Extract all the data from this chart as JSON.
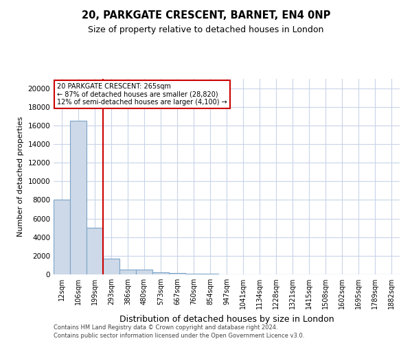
{
  "title_line1": "20, PARKGATE CRESCENT, BARNET, EN4 0NP",
  "title_line2": "Size of property relative to detached houses in London",
  "xlabel": "Distribution of detached houses by size in London",
  "ylabel": "Number of detached properties",
  "bar_categories": [
    "12sqm",
    "106sqm",
    "199sqm",
    "293sqm",
    "386sqm",
    "480sqm",
    "573sqm",
    "667sqm",
    "760sqm",
    "854sqm",
    "947sqm",
    "1041sqm",
    "1134sqm",
    "1228sqm",
    "1321sqm",
    "1415sqm",
    "1508sqm",
    "1602sqm",
    "1695sqm",
    "1789sqm",
    "1882sqm"
  ],
  "bar_values": [
    8000,
    16500,
    5000,
    1700,
    500,
    500,
    200,
    150,
    100,
    80,
    0,
    0,
    0,
    0,
    0,
    0,
    0,
    0,
    0,
    0,
    0
  ],
  "bar_color": "#cdd9e8",
  "bar_edge_color": "#7ba3c8",
  "vline_color": "#cc0000",
  "vline_x": 2.5,
  "annotation_text_line1": "20 PARKGATE CRESCENT: 265sqm",
  "annotation_text_line2": "← 87% of detached houses are smaller (28,820)",
  "annotation_text_line3": "12% of semi-detached houses are larger (4,100) →",
  "annotation_box_color": "#cc0000",
  "ylim": [
    0,
    21000
  ],
  "yticks": [
    0,
    2000,
    4000,
    6000,
    8000,
    10000,
    12000,
    14000,
    16000,
    18000,
    20000
  ],
  "footer_line1": "Contains HM Land Registry data © Crown copyright and database right 2024.",
  "footer_line2": "Contains public sector information licensed under the Open Government Licence v3.0.",
  "background_color": "#ffffff",
  "grid_color": "#c8d4e8",
  "title_fontsize": 10.5,
  "subtitle_fontsize": 9,
  "ylabel_fontsize": 8,
  "xlabel_fontsize": 9,
  "tick_fontsize": 7,
  "ytick_fontsize": 7.5,
  "annotation_fontsize": 7,
  "footer_fontsize": 6
}
